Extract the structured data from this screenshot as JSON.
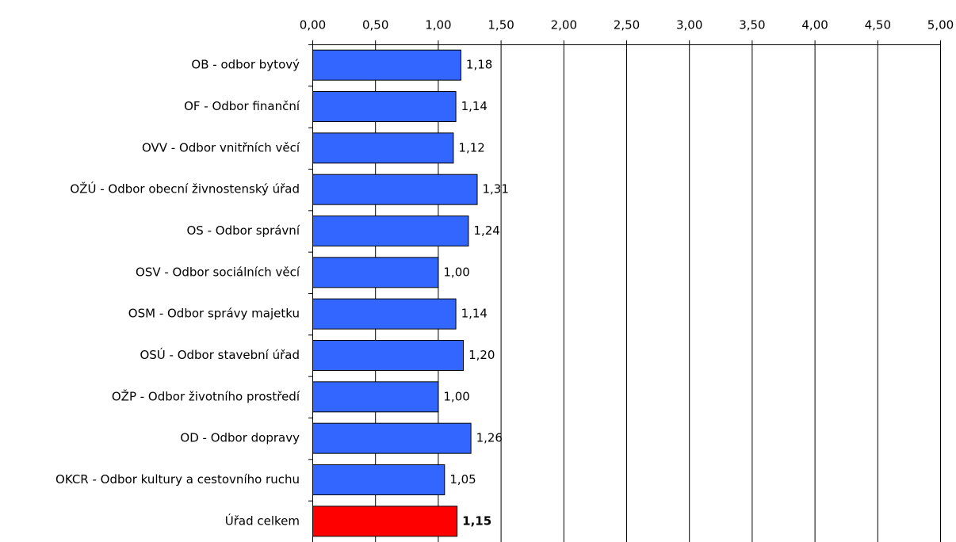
{
  "chart_data": {
    "type": "bar",
    "orientation": "horizontal",
    "categories": [
      "OB - odbor bytový",
      "OF - Odbor finanční",
      "OVV - Odbor vnitřních věcí",
      "OŽÚ - Odbor obecní živnostenský úřad",
      "OS - Odbor správní",
      "OSV - Odbor sociálních věcí",
      "OSM - Odbor správy majetku",
      "OSÚ - Odbor stavební úřad",
      "OŽP - Odbor životního prostředí",
      "OD - Odbor dopravy",
      "OKCR - Odbor kultury a cestovního ruchu",
      "Úřad celkem"
    ],
    "values": [
      1.18,
      1.14,
      1.12,
      1.31,
      1.24,
      1.0,
      1.14,
      1.2,
      1.0,
      1.26,
      1.05,
      1.15
    ],
    "value_labels": [
      "1,18",
      "1,14",
      "1,12",
      "1,31",
      "1,24",
      "1,00",
      "1,14",
      "1,20",
      "1,00",
      "1,26",
      "1,05",
      "1,15"
    ],
    "highlight_index": 11,
    "xlim": [
      0,
      5
    ],
    "x_ticks": [
      0,
      0.5,
      1,
      1.5,
      2,
      2.5,
      3,
      3.5,
      4,
      4.5,
      5
    ],
    "x_tick_labels": [
      "0,00",
      "0,50",
      "1,00",
      "1,50",
      "2,00",
      "2,50",
      "3,00",
      "3,50",
      "4,00",
      "4,50",
      "5,00"
    ],
    "x_axis_position": "top",
    "grid": "vertical",
    "legend": "none",
    "title": "",
    "xlabel": "",
    "ylabel": "",
    "colors": {
      "bar": "#3366FF",
      "highlight_bar": "#FF0000",
      "bar_border": "#000000",
      "grid": "#000000"
    }
  }
}
